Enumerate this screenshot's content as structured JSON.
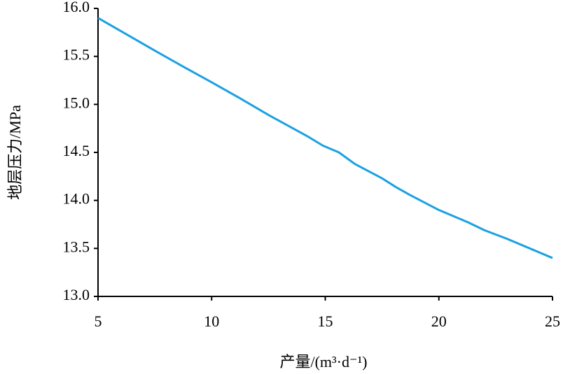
{
  "chart_data": {
    "type": "line",
    "x_label": "产量/(m³·d⁻¹)",
    "y_label": "地层压力/MPa",
    "x": [
      5,
      7.5,
      8.7,
      10,
      11.2,
      12.5,
      14.2,
      14.9,
      15.6,
      16.3,
      17.5,
      18.1,
      18.7,
      20,
      20.6,
      21.3,
      22,
      23,
      25
    ],
    "series": [
      {
        "color": "#1ba1e2",
        "values": [
          15.9,
          15.56,
          15.4,
          15.23,
          15.07,
          14.89,
          14.67,
          14.57,
          14.5,
          14.38,
          14.23,
          14.14,
          14.06,
          13.9,
          13.84,
          13.77,
          13.69,
          13.6,
          13.4
        ]
      }
    ],
    "xlim": [
      5,
      25
    ],
    "xticks": [
      5,
      10,
      15,
      20,
      25
    ],
    "ylim": [
      13,
      16
    ],
    "yticks": [
      {
        "value": 13,
        "label": "13.0"
      },
      {
        "value": 13.5,
        "label": "13.5"
      },
      {
        "value": 14,
        "label": "14.0"
      },
      {
        "value": 14.5,
        "label": "14.5"
      },
      {
        "value": 15,
        "label": "15.0"
      },
      {
        "value": 15.5,
        "label": "15.5"
      },
      {
        "value": 16,
        "label": "16.0"
      }
    ],
    "grid": false
  }
}
